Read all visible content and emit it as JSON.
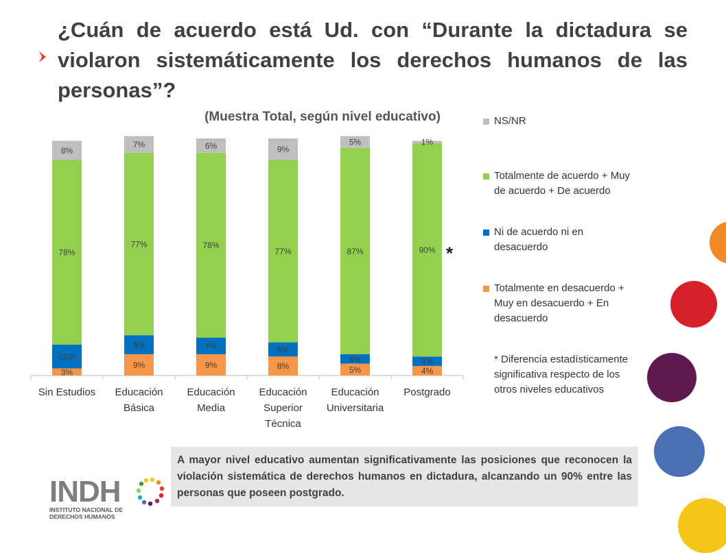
{
  "title": "¿Cuán de acuerdo está Ud. con “Durante la dictadura se violaron sistemáticamente los derechos humanos de las personas”?",
  "colors": {
    "accent": "#e8402a",
    "ns_nr": "#bfbfbf",
    "acuerdo": "#92d050",
    "neutral": "#0070c0",
    "desacuerdo": "#f79646",
    "deco_orange": "#f08a24",
    "deco_red": "#d6202a",
    "deco_purple": "#5c1a4f",
    "deco_blue": "#4a6fb3",
    "deco_yellow": "#f5c518"
  },
  "chart_data": {
    "type": "bar",
    "stacked": true,
    "title": "(Muestra Total, según nivel educativo)",
    "categories": [
      [
        "Sin Estudios"
      ],
      [
        "Educación",
        "Básica"
      ],
      [
        "Educación",
        "Media"
      ],
      [
        "Educación",
        "Superior",
        "Técnica"
      ],
      [
        "Educación",
        "Universitaria"
      ],
      [
        "Postgrado"
      ]
    ],
    "series": [
      {
        "name": "Totalmente en desacuerdo + Muy en desacuerdo + En desacuerdo",
        "color": "#f79646",
        "values": [
          3,
          9,
          9,
          8,
          5,
          4
        ],
        "labels": [
          "3%",
          "9%",
          "9%",
          "8%",
          "5%",
          "4%"
        ]
      },
      {
        "name": "Ni de acuerdo ni en desacuerdo",
        "color": "#0070c0",
        "values": [
          10,
          8,
          7,
          6,
          4,
          4
        ],
        "labels": [
          "10%",
          "8%",
          "7%",
          "6%",
          "4%",
          "4%"
        ]
      },
      {
        "name": "Totalmente de acuerdo + Muy de acuerdo + De acuerdo",
        "color": "#92d050",
        "values": [
          78,
          77,
          78,
          77,
          87,
          90
        ],
        "labels": [
          "78%",
          "77%",
          "78%",
          "77%",
          "87%",
          "90%"
        ]
      },
      {
        "name": "NS/NR",
        "color": "#bfbfbf",
        "values": [
          8,
          7,
          6,
          9,
          5,
          1
        ],
        "labels": [
          "8%",
          "7%",
          "6%",
          "9%",
          "5%",
          "1%"
        ]
      }
    ],
    "ylim": [
      0,
      100
    ],
    "grid": false,
    "significance_marker": {
      "category_index": 5,
      "text": "*"
    },
    "legend_position": "right"
  },
  "legend": {
    "ns_nr": "NS/NR",
    "acuerdo": "Totalmente de acuerdo + Muy de acuerdo + De acuerdo",
    "neutral": "Ni de acuerdo ni en desacuerdo",
    "desacuerdo": "Totalmente en desacuerdo + Muy en desacuerdo + En desacuerdo",
    "footnote": "* Diferencia estadísticamente significativa respecto de los otros niveles educativos"
  },
  "note": "A mayor nivel educativo aumentan significativamente las posiciones que reconocen la violación sistemática de derechos humanos en dictadura, alcanzando un 90% entre las personas que poseen postgrado.",
  "logo": {
    "acronym": "INDH",
    "line1": "INSTITUTO NACIONAL DE",
    "line2": "DERECHOS HUMANOS"
  }
}
